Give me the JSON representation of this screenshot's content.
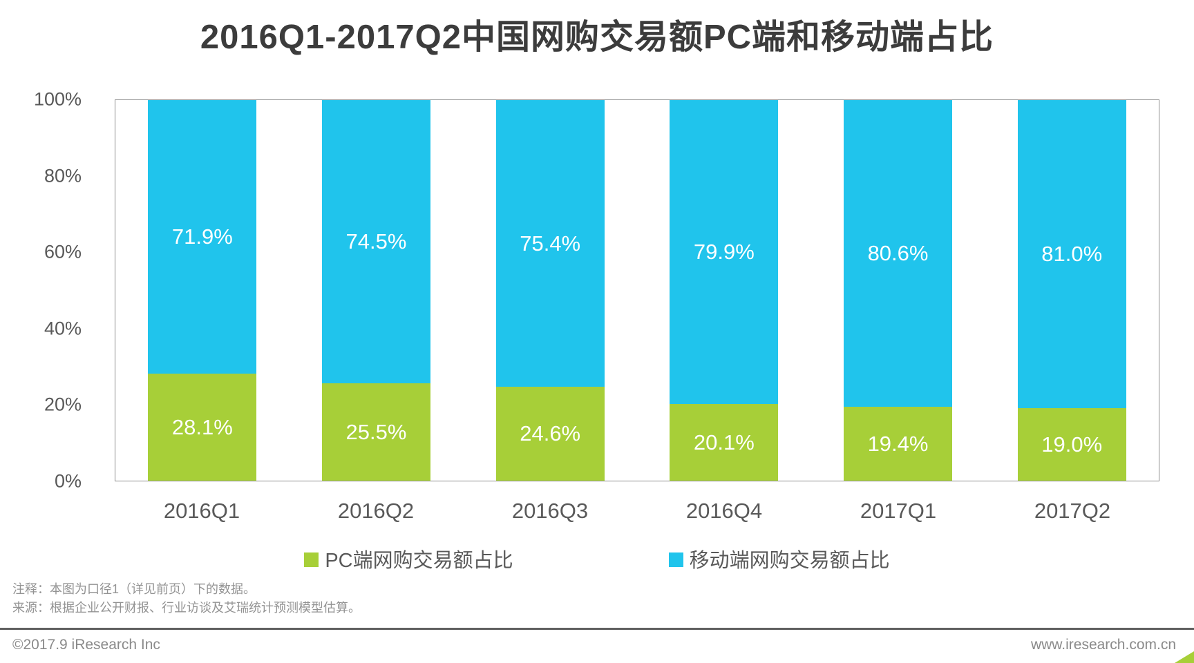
{
  "page": {
    "title": "2016Q1-2017Q2中国网购交易额PC端和移动端占比"
  },
  "chart_data": {
    "type": "bar",
    "variant": "stacked-100-percent-column",
    "title": "2016Q1-2017Q2中国网购交易额PC端和移动端占比",
    "categories": [
      "2016Q1",
      "2016Q2",
      "2016Q3",
      "2016Q4",
      "2017Q1",
      "2017Q2"
    ],
    "series": [
      {
        "key": "pc",
        "name": "PC端网购交易额占比",
        "color": "#a7cf38",
        "values": [
          28.1,
          25.5,
          24.6,
          20.1,
          19.4,
          19.0
        ]
      },
      {
        "key": "mobile",
        "name": "移动端网购交易额占比",
        "color": "#20c4ec",
        "values": [
          71.9,
          74.5,
          75.4,
          79.9,
          80.6,
          81.0
        ]
      }
    ],
    "stack_order_top_to_bottom": [
      "mobile",
      "pc"
    ],
    "y_axis": {
      "tick_labels": [
        "100%",
        "80%",
        "60%",
        "40%",
        "20%",
        "0%"
      ],
      "min": 0,
      "max": 100,
      "gridlines": false
    },
    "data_labels": "inside segment center, white, one decimal with % sign",
    "legend_position": "bottom-center"
  },
  "notes": {
    "annotation": "注释：本图为口径1（详见前页）下的数据。",
    "source": "来源：根据企业公开财报、行业访谈及艾瑞统计预测模型估算。"
  },
  "footer": {
    "copyright": "©2017.9 iResearch Inc",
    "website": "www.iresearch.com.cn"
  },
  "colors": {
    "pc_green": "#a7cf38",
    "mobile_blue": "#20c4ec",
    "axis_border": "#8a8a8a",
    "label_text": "#595959",
    "title_text": "#3c3c3c",
    "note_text": "#939393",
    "footer_text": "#8a8a8a",
    "divider": "#606060"
  }
}
